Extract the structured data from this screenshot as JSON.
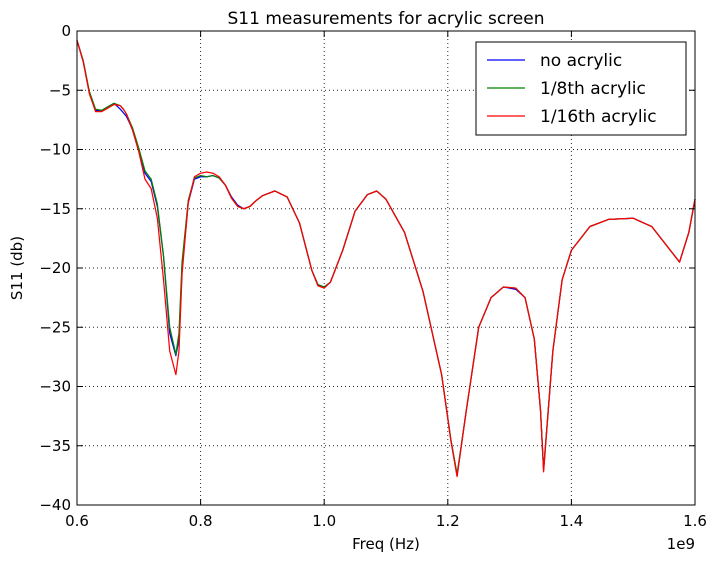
{
  "chart_data": {
    "type": "line",
    "title": "S11 measurements for acrylic screen",
    "xlabel": "Freq (Hz)",
    "ylabel": "S11 (db)",
    "x_offset_label": "1e9",
    "xlim": [
      0.6,
      1.6
    ],
    "ylim": [
      -40,
      0
    ],
    "x_unit_multiplier": 1000000000,
    "xticks": [
      0.6,
      0.8,
      1.0,
      1.2,
      1.4,
      1.6
    ],
    "xtick_labels": [
      "0.6",
      "0.8",
      "1.0",
      "1.2",
      "1.4",
      "1.6"
    ],
    "yticks": [
      0,
      -5,
      -10,
      -15,
      -20,
      -25,
      -30,
      -35,
      -40
    ],
    "ytick_labels": [
      "0",
      "−5",
      "−10",
      "−15",
      "−20",
      "−25",
      "−30",
      "−35",
      "−40"
    ],
    "grid": true,
    "legend_position": "top-right",
    "series": [
      {
        "name": "no acrylic",
        "color": "#0000ff",
        "x": [
          0.6,
          0.61,
          0.62,
          0.63,
          0.64,
          0.65,
          0.66,
          0.67,
          0.675,
          0.68,
          0.69,
          0.7,
          0.71,
          0.72,
          0.73,
          0.74,
          0.75,
          0.76,
          0.765,
          0.77,
          0.78,
          0.79,
          0.8,
          0.81,
          0.82,
          0.83,
          0.84,
          0.85,
          0.86,
          0.87,
          0.88,
          0.89,
          0.9,
          0.92,
          0.94,
          0.96,
          0.98,
          0.99,
          1.0,
          1.01,
          1.03,
          1.05,
          1.07,
          1.085,
          1.1,
          1.13,
          1.16,
          1.19,
          1.205,
          1.215,
          1.23,
          1.25,
          1.27,
          1.29,
          1.31,
          1.325,
          1.34,
          1.35,
          1.355,
          1.37,
          1.385,
          1.4,
          1.43,
          1.46,
          1.5,
          1.53,
          1.56,
          1.575,
          1.59,
          1.6
        ],
        "y": [
          -0.8,
          -2.5,
          -5.2,
          -6.7,
          -6.7,
          -6.4,
          -6.1,
          -6.6,
          -6.9,
          -7.2,
          -8.3,
          -10.0,
          -12.0,
          -12.7,
          -14.8,
          -19.0,
          -25.5,
          -27.4,
          -26.0,
          -20.0,
          -14.5,
          -12.5,
          -12.3,
          -12.3,
          -12.2,
          -12.4,
          -13.0,
          -14.0,
          -14.7,
          -15.0,
          -14.8,
          -14.3,
          -13.9,
          -13.5,
          -14.0,
          -16.2,
          -20.2,
          -21.5,
          -21.6,
          -21.2,
          -18.5,
          -15.2,
          -13.8,
          -13.5,
          -14.2,
          -17.0,
          -22.0,
          -29.0,
          -34.5,
          -37.5,
          -32.0,
          -25.0,
          -22.5,
          -21.6,
          -21.8,
          -22.5,
          -26.0,
          -32.0,
          -37.0,
          -27.0,
          -21.0,
          -18.5,
          -16.5,
          -15.9,
          -15.8,
          -16.5,
          -18.5,
          -19.5,
          -17.0,
          -14.2
        ]
      },
      {
        "name": "1/8th acrylic",
        "color": "#008000",
        "x": [
          0.6,
          0.61,
          0.62,
          0.63,
          0.64,
          0.65,
          0.66,
          0.67,
          0.675,
          0.68,
          0.69,
          0.7,
          0.71,
          0.72,
          0.73,
          0.74,
          0.75,
          0.76,
          0.765,
          0.77,
          0.78,
          0.79,
          0.8,
          0.81,
          0.82,
          0.83,
          0.84,
          0.85,
          0.86,
          0.87,
          0.88,
          0.89,
          0.9,
          0.92,
          0.94,
          0.96,
          0.98,
          0.99,
          1.0,
          1.01,
          1.03,
          1.05,
          1.07,
          1.085,
          1.1,
          1.13,
          1.16,
          1.19,
          1.205,
          1.215,
          1.23,
          1.25,
          1.27,
          1.29,
          1.31,
          1.325,
          1.34,
          1.35,
          1.355,
          1.37,
          1.385,
          1.4,
          1.43,
          1.46,
          1.5,
          1.53,
          1.56,
          1.575,
          1.59,
          1.6
        ],
        "y": [
          -0.8,
          -2.5,
          -5.1,
          -6.6,
          -6.7,
          -6.4,
          -6.1,
          -6.3,
          -6.6,
          -7.0,
          -8.2,
          -9.9,
          -11.8,
          -12.5,
          -14.6,
          -19.0,
          -25.0,
          -27.3,
          -25.5,
          -19.5,
          -14.3,
          -12.4,
          -12.2,
          -12.3,
          -12.2,
          -12.4,
          -13.0,
          -14.1,
          -14.8,
          -15.0,
          -14.8,
          -14.3,
          -13.9,
          -13.5,
          -14.0,
          -16.2,
          -20.2,
          -21.4,
          -21.6,
          -21.2,
          -18.5,
          -15.2,
          -13.8,
          -13.5,
          -14.2,
          -17.0,
          -22.0,
          -29.0,
          -34.5,
          -37.4,
          -32.0,
          -25.0,
          -22.5,
          -21.6,
          -21.7,
          -22.5,
          -26.0,
          -32.0,
          -37.0,
          -27.0,
          -21.0,
          -18.5,
          -16.5,
          -15.9,
          -15.8,
          -16.5,
          -18.5,
          -19.5,
          -17.0,
          -14.2
        ]
      },
      {
        "name": "1/16th acrylic",
        "color": "#ff0000",
        "x": [
          0.6,
          0.61,
          0.62,
          0.63,
          0.64,
          0.65,
          0.66,
          0.67,
          0.675,
          0.68,
          0.69,
          0.7,
          0.71,
          0.72,
          0.73,
          0.74,
          0.75,
          0.76,
          0.765,
          0.77,
          0.78,
          0.79,
          0.8,
          0.81,
          0.82,
          0.83,
          0.84,
          0.85,
          0.86,
          0.87,
          0.88,
          0.89,
          0.9,
          0.92,
          0.94,
          0.96,
          0.98,
          0.99,
          1.0,
          1.01,
          1.03,
          1.05,
          1.07,
          1.085,
          1.1,
          1.13,
          1.16,
          1.19,
          1.205,
          1.215,
          1.23,
          1.25,
          1.27,
          1.29,
          1.31,
          1.325,
          1.34,
          1.35,
          1.355,
          1.37,
          1.385,
          1.4,
          1.43,
          1.46,
          1.5,
          1.53,
          1.56,
          1.575,
          1.59,
          1.6
        ],
        "y": [
          -0.8,
          -2.6,
          -5.3,
          -6.8,
          -6.8,
          -6.5,
          -6.2,
          -6.3,
          -6.6,
          -7.0,
          -8.4,
          -10.2,
          -12.5,
          -13.3,
          -15.8,
          -21.0,
          -27.0,
          -29.0,
          -27.0,
          -20.5,
          -14.5,
          -12.3,
          -12.0,
          -11.9,
          -12.0,
          -12.3,
          -13.0,
          -14.1,
          -14.8,
          -15.0,
          -14.8,
          -14.3,
          -13.9,
          -13.5,
          -14.0,
          -16.2,
          -20.2,
          -21.5,
          -21.7,
          -21.2,
          -18.5,
          -15.2,
          -13.8,
          -13.5,
          -14.2,
          -17.0,
          -22.0,
          -29.0,
          -34.6,
          -37.6,
          -32.0,
          -25.0,
          -22.5,
          -21.6,
          -21.7,
          -22.5,
          -26.0,
          -32.0,
          -37.2,
          -27.0,
          -21.0,
          -18.5,
          -16.5,
          -15.9,
          -15.8,
          -16.5,
          -18.5,
          -19.5,
          -17.0,
          -14.2
        ]
      }
    ]
  }
}
